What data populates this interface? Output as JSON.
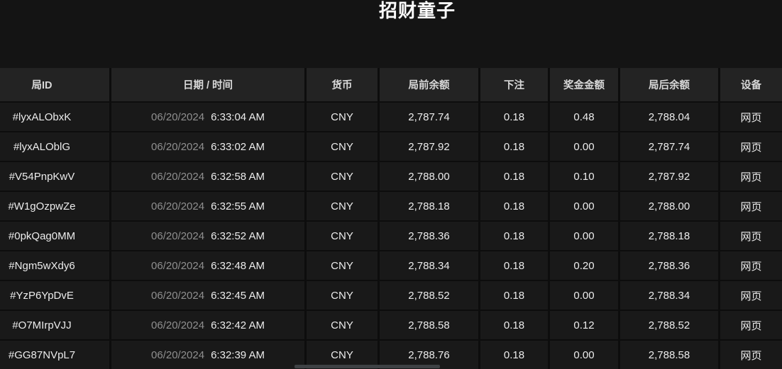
{
  "page": {
    "title": "招财童子"
  },
  "colors": {
    "page_background": "#141414",
    "table_gap": "#0d0d0d",
    "header_background": "#232323",
    "row_background": "#191919",
    "header_text": "#d8d8d8",
    "body_text": "#ececec",
    "date_text": "#8f8f8f",
    "scrollbar_thumb": "#3e4144"
  },
  "table": {
    "columns": [
      {
        "key": "round_id",
        "name": "round-id",
        "label": "局ID"
      },
      {
        "key": "datetime",
        "name": "datetime",
        "label": "日期 / 时间"
      },
      {
        "key": "currency",
        "name": "currency",
        "label": "货币"
      },
      {
        "key": "balance_before",
        "name": "balance-before",
        "label": "局前余额"
      },
      {
        "key": "bet",
        "name": "bet",
        "label": "下注"
      },
      {
        "key": "bonus",
        "name": "bonus",
        "label": "奖金金额"
      },
      {
        "key": "balance_after",
        "name": "balance-after",
        "label": "局后余额"
      },
      {
        "key": "device",
        "name": "device",
        "label": "设备"
      }
    ],
    "rows": [
      {
        "round_id": "#lyxALObxK",
        "date": "06/20/2024",
        "time": "6:33:04 AM",
        "currency": "CNY",
        "balance_before": "2,787.74",
        "bet": "0.18",
        "bonus": "0.48",
        "balance_after": "2,788.04",
        "device": "网页"
      },
      {
        "round_id": "#lyxALOblG",
        "date": "06/20/2024",
        "time": "6:33:02 AM",
        "currency": "CNY",
        "balance_before": "2,787.92",
        "bet": "0.18",
        "bonus": "0.00",
        "balance_after": "2,787.74",
        "device": "网页"
      },
      {
        "round_id": "#V54PnpKwV",
        "date": "06/20/2024",
        "time": "6:32:58 AM",
        "currency": "CNY",
        "balance_before": "2,788.00",
        "bet": "0.18",
        "bonus": "0.10",
        "balance_after": "2,787.92",
        "device": "网页"
      },
      {
        "round_id": "#W1gOzpwZe",
        "date": "06/20/2024",
        "time": "6:32:55 AM",
        "currency": "CNY",
        "balance_before": "2,788.18",
        "bet": "0.18",
        "bonus": "0.00",
        "balance_after": "2,788.00",
        "device": "网页"
      },
      {
        "round_id": "#0pkQag0MM",
        "date": "06/20/2024",
        "time": "6:32:52 AM",
        "currency": "CNY",
        "balance_before": "2,788.36",
        "bet": "0.18",
        "bonus": "0.00",
        "balance_after": "2,788.18",
        "device": "网页"
      },
      {
        "round_id": "#Ngm5wXdy6",
        "date": "06/20/2024",
        "time": "6:32:48 AM",
        "currency": "CNY",
        "balance_before": "2,788.34",
        "bet": "0.18",
        "bonus": "0.20",
        "balance_after": "2,788.36",
        "device": "网页"
      },
      {
        "round_id": "#YzP6YpDvE",
        "date": "06/20/2024",
        "time": "6:32:45 AM",
        "currency": "CNY",
        "balance_before": "2,788.52",
        "bet": "0.18",
        "bonus": "0.00",
        "balance_after": "2,788.34",
        "device": "网页"
      },
      {
        "round_id": "#O7MIrpVJJ",
        "date": "06/20/2024",
        "time": "6:32:42 AM",
        "currency": "CNY",
        "balance_before": "2,788.58",
        "bet": "0.18",
        "bonus": "0.12",
        "balance_after": "2,788.52",
        "device": "网页"
      },
      {
        "round_id": "#GG87NVpL7",
        "date": "06/20/2024",
        "time": "6:32:39 AM",
        "currency": "CNY",
        "balance_before": "2,788.76",
        "bet": "0.18",
        "bonus": "0.00",
        "balance_after": "2,788.58",
        "device": "网页"
      }
    ]
  }
}
